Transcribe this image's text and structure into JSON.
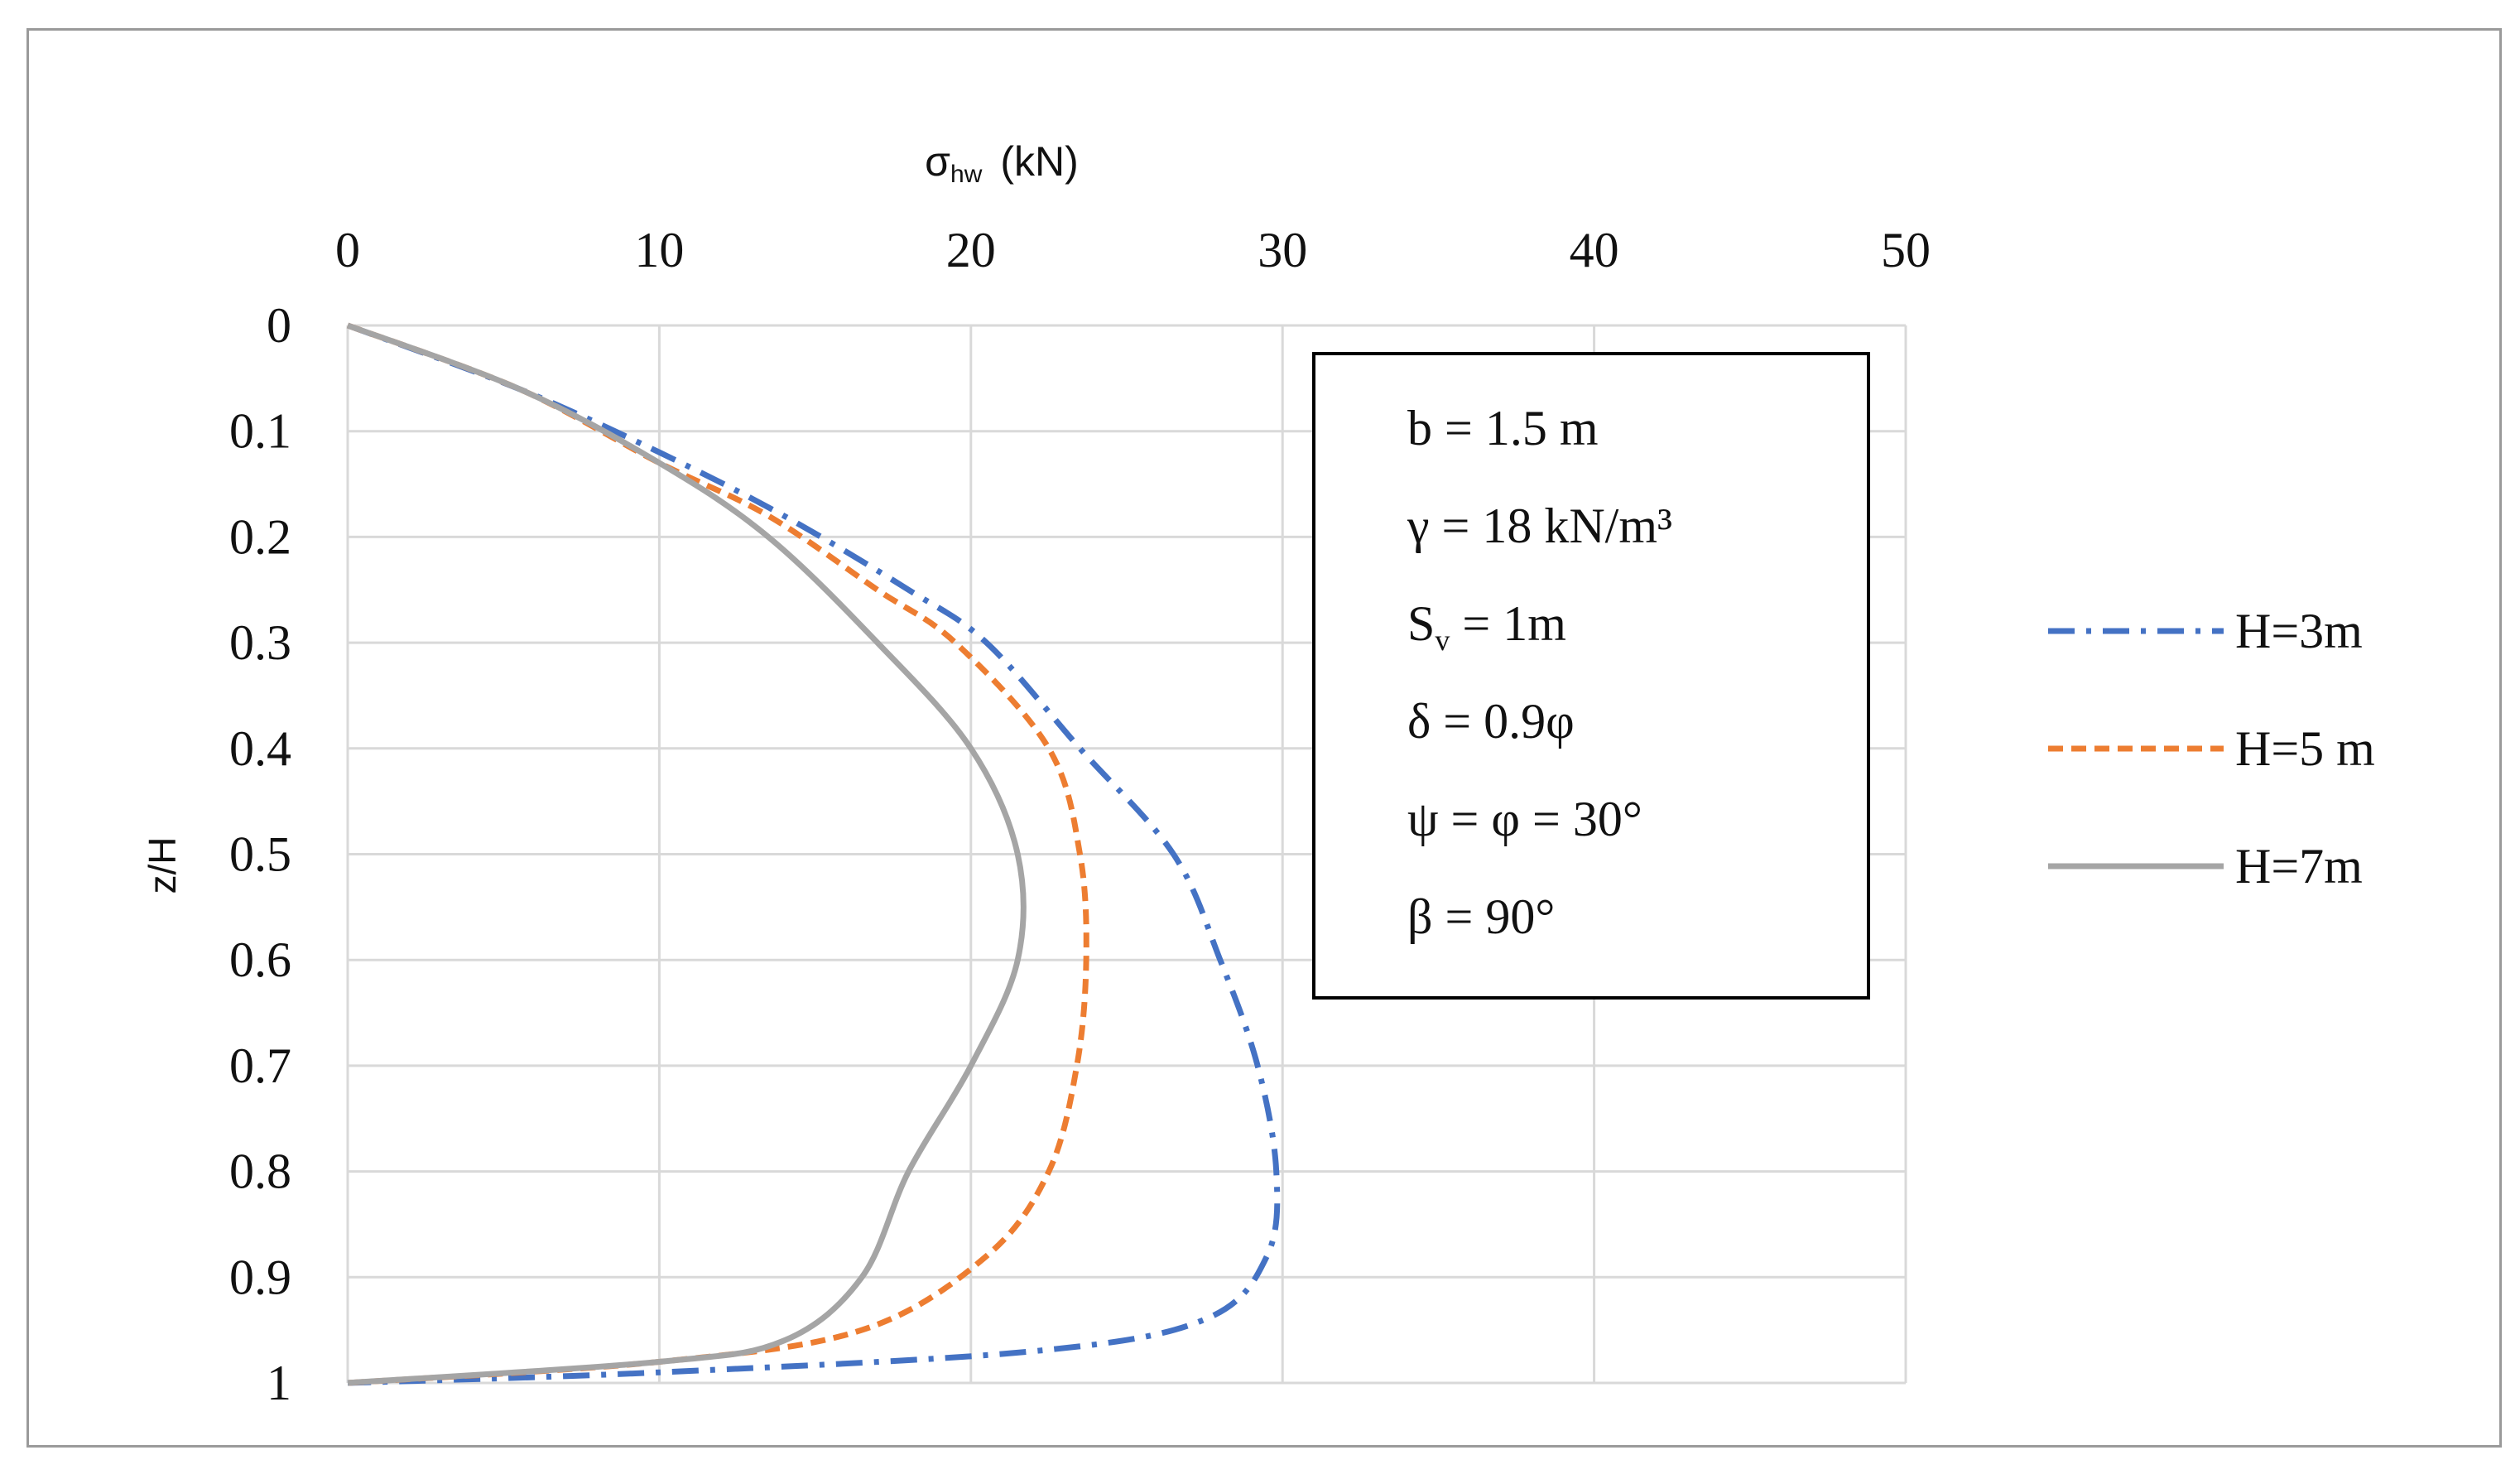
{
  "chart_data": {
    "type": "line",
    "title": "",
    "xlabel": "σhw (kN)",
    "xlabel_main": "σ",
    "xlabel_sub": "hw",
    "xlabel_unit": "(kN)",
    "ylabel": "z/H",
    "xlim": [
      0,
      50
    ],
    "ylim": [
      0,
      1
    ],
    "x_axis_position": "top",
    "y_axis_inverted": true,
    "grid": true,
    "x_ticks": [
      "0",
      "10",
      "20",
      "30",
      "40",
      "50"
    ],
    "y_ticks": [
      "0",
      "0.1",
      "0.2",
      "0.3",
      "0.4",
      "0.5",
      "0.6",
      "0.7",
      "0.8",
      "0.9",
      "1"
    ],
    "legend_position": "right",
    "series": [
      {
        "name": "H=3m",
        "color": "#4472C4",
        "style": "dash-dot",
        "points": [
          [
            0,
            0
          ],
          [
            5.5,
            0.06
          ],
          [
            10,
            0.12
          ],
          [
            14,
            0.18
          ],
          [
            18,
            0.25
          ],
          [
            20.5,
            0.3
          ],
          [
            23.5,
            0.4
          ],
          [
            26.5,
            0.5
          ],
          [
            28,
            0.6
          ],
          [
            29.2,
            0.7
          ],
          [
            29.8,
            0.8
          ],
          [
            29.5,
            0.88
          ],
          [
            27.5,
            0.94
          ],
          [
            22,
            0.97
          ],
          [
            10,
            0.99
          ],
          [
            0,
            1
          ]
        ]
      },
      {
        "name": "H=5 m",
        "color": "#ED7D31",
        "style": "dash",
        "points": [
          [
            0,
            0
          ],
          [
            5.5,
            0.06
          ],
          [
            10,
            0.13
          ],
          [
            13.5,
            0.18
          ],
          [
            17,
            0.25
          ],
          [
            19.5,
            0.3
          ],
          [
            22.5,
            0.4
          ],
          [
            23.5,
            0.5
          ],
          [
            23.7,
            0.6
          ],
          [
            23.4,
            0.7
          ],
          [
            22.5,
            0.8
          ],
          [
            20.5,
            0.88
          ],
          [
            16.5,
            0.95
          ],
          [
            10,
            0.98
          ],
          [
            0,
            1
          ]
        ]
      },
      {
        "name": "H=7m",
        "color": "#A5A5A5",
        "style": "solid",
        "points": [
          [
            0,
            0
          ],
          [
            5.5,
            0.06
          ],
          [
            10,
            0.13
          ],
          [
            13.5,
            0.2
          ],
          [
            17,
            0.3
          ],
          [
            20,
            0.4
          ],
          [
            21.5,
            0.5
          ],
          [
            21.5,
            0.6
          ],
          [
            20,
            0.7
          ],
          [
            18,
            0.8
          ],
          [
            16.5,
            0.9
          ],
          [
            14,
            0.96
          ],
          [
            10,
            0.98
          ],
          [
            0,
            1
          ]
        ]
      }
    ],
    "annotation_box": [
      {
        "main": "b = 1.5 m",
        "sub": ""
      },
      {
        "main": "γ = 18 kN/m³",
        "sub": ""
      },
      {
        "main": "S",
        "sub": "v",
        "rest": " = 1m"
      },
      {
        "main": "δ = 0.9φ",
        "sub": ""
      },
      {
        "main": "ψ = φ = 30°",
        "sub": ""
      },
      {
        "main": "β = 90°",
        "sub": ""
      }
    ]
  }
}
